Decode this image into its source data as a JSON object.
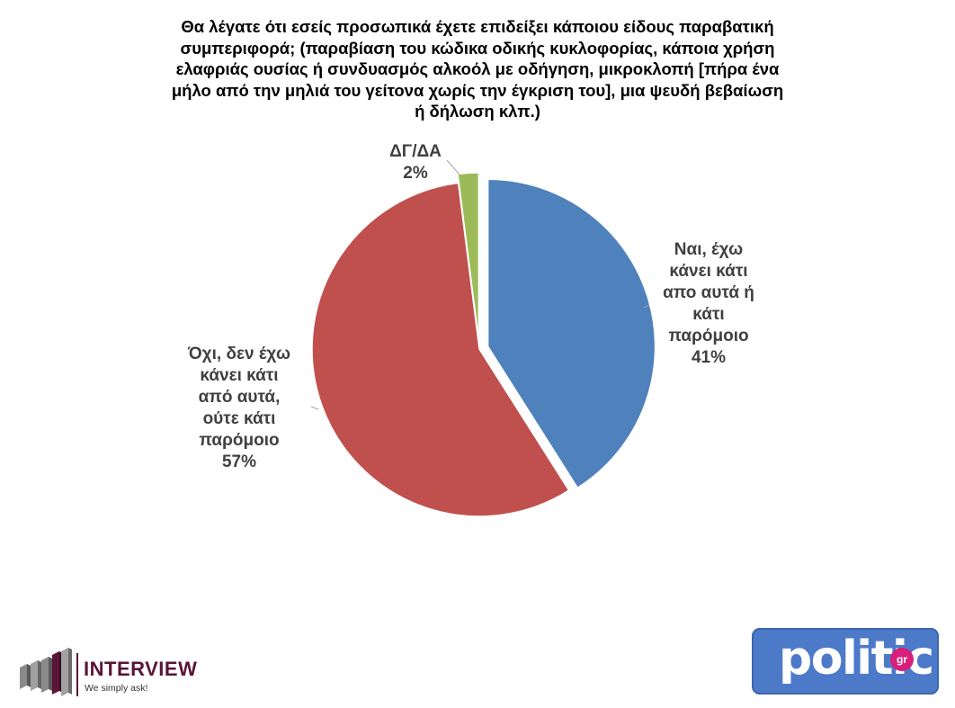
{
  "chart_data": {
    "type": "pie",
    "title_lines": [
      "Θα λέγατε ότι εσείς προσωπικά έχετε επιδείξει κάποιου είδους παραβατική",
      "συμπεριφορά; (παραβίαση του κώδικα οδικής κυκλοφορίας, κάποια χρήση",
      "ελαφριάς ουσίας ή συνδυασμός αλκοόλ με οδήγηση, μικροκλοπή [πήρα ένα",
      "μήλο από την μηλιά του γείτονα χωρίς την έγκριση του], μια ψευδή βεβαίωση",
      "ή δήλωση κλπ.)"
    ],
    "slices": [
      {
        "label_lines": [
          "Ναι, έχω",
          "κάνει κάτι",
          "απο αυτά ή",
          "κάτι",
          "παρόμοιο"
        ],
        "value": 41,
        "value_label": "41%",
        "color": "#4f81bd",
        "exploded": true
      },
      {
        "label_lines": [
          "Όχι, δεν έχω",
          "κάνει κάτι",
          "από αυτά,",
          "ούτε κάτι",
          "παρόμοιο"
        ],
        "value": 57,
        "value_label": "57%",
        "color": "#c0504d",
        "exploded": false
      },
      {
        "label_lines": [
          "ΔΓ/ΔΑ"
        ],
        "value": 2,
        "value_label": "2%",
        "color": "#9bbb59",
        "exploded": true
      }
    ],
    "start_angle": "12 o'clock",
    "direction": "clockwise",
    "legend": "none"
  },
  "logos": {
    "interview": {
      "name": "INTERVIEW",
      "tagline": "We simply ask!",
      "color": "#5a1436"
    },
    "politic": {
      "word": "politic",
      "badge": "gr",
      "color": "#4c7ac9",
      "badge_color": "#d81f7a"
    }
  }
}
